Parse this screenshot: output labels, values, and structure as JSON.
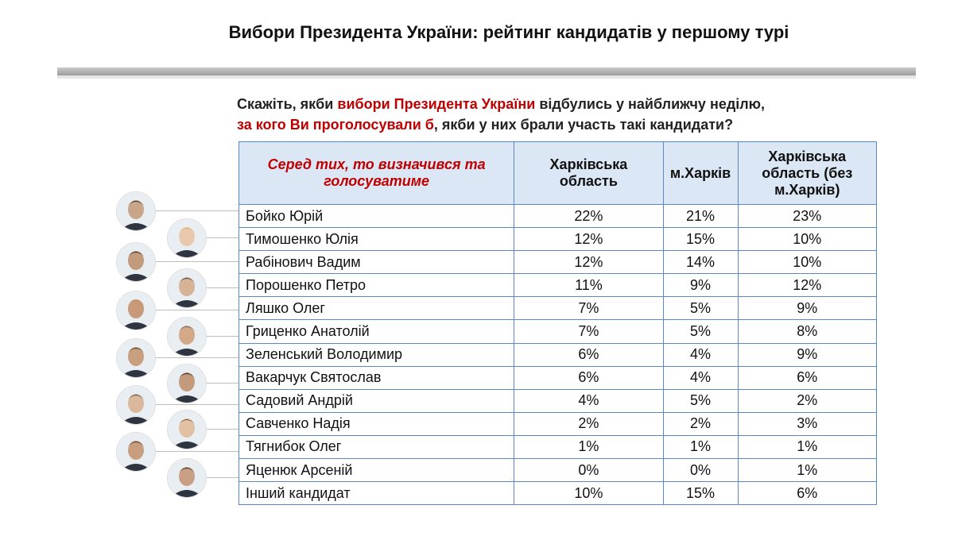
{
  "title": "Вибори Президента України: рейтинг кандидатів у першому турі",
  "question": {
    "part1": "Скажіть, якби ",
    "part2_red": "вибори Президента України",
    "part3": " відбулись у найближчу неділю,",
    "part4_red": "за кого Ви проголосували б",
    "part5": ", якби у них брали участь такі кандидати?"
  },
  "table": {
    "header_intro": "Серед тих, то визначився та голосуватиме",
    "columns": [
      "Харківська область",
      "м.Харків",
      "Харківська область (без м.Харків)"
    ],
    "rows": [
      {
        "name": "Бойко Юрій",
        "values": [
          "22%",
          "21%",
          "23%"
        ]
      },
      {
        "name": "Тимошенко Юлія",
        "values": [
          "12%",
          "15%",
          "10%"
        ]
      },
      {
        "name": "Рабінович Вадим",
        "values": [
          "12%",
          "14%",
          "10%"
        ]
      },
      {
        "name": "Порошенко Петро",
        "values": [
          "11%",
          "9%",
          "12%"
        ]
      },
      {
        "name": "Ляшко Олег",
        "values": [
          "7%",
          "5%",
          "9%"
        ]
      },
      {
        "name": "Гриценко Анатолій",
        "values": [
          "7%",
          "5%",
          "8%"
        ]
      },
      {
        "name": "Зеленський Володимир",
        "values": [
          "6%",
          "4%",
          "9%"
        ]
      },
      {
        "name": "Вакарчук Святослав",
        "values": [
          "6%",
          "4%",
          "6%"
        ]
      },
      {
        "name": "Садовий Андрій",
        "values": [
          "4%",
          "5%",
          "2%"
        ]
      },
      {
        "name": "Савченко Надія",
        "values": [
          "2%",
          "2%",
          "3%"
        ]
      },
      {
        "name": "Тягнибок Олег",
        "values": [
          "1%",
          "1%",
          "1%"
        ]
      },
      {
        "name": "Яценюк Арсеній",
        "values": [
          "0%",
          "0%",
          "1%"
        ]
      },
      {
        "name": "Інший кандидат",
        "values": [
          "10%",
          "15%",
          "6%"
        ]
      }
    ]
  },
  "colors": {
    "accent_red": "#c00000",
    "header_bg": "#dbe7f4",
    "table_border": "#5b88c2"
  },
  "icons": [
    "candidate-photo-icon"
  ]
}
